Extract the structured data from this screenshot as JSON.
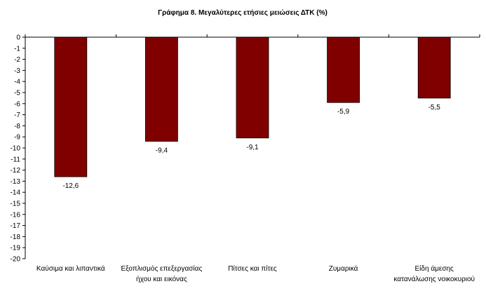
{
  "chart_data": {
    "type": "bar",
    "title": "Γράφημα 8. Μεγαλύτερες ετήσιες μειώσεις ΔΤΚ (%)",
    "categories": [
      [
        "Καύσιμα και λιπαντικά"
      ],
      [
        "Εξοπλισμός επεξεργασίας",
        "ήχου και εικόνας"
      ],
      [
        "Πίτσες και πίτες"
      ],
      [
        "Ζυμαρικά"
      ],
      [
        "Είδη άμεσης",
        "κατανάλωσης νοικοκυριού"
      ]
    ],
    "values": [
      -12.6,
      -9.4,
      -9.1,
      -5.9,
      -5.5
    ],
    "value_labels": [
      "-12,6",
      "-9,4",
      "-9,1",
      "-5,9",
      "-5,5"
    ],
    "ylim": [
      -20,
      0
    ],
    "yticks": [
      "0",
      "-1",
      "-2",
      "-3",
      "-4",
      "-5",
      "-6",
      "-7",
      "-8",
      "-9",
      "-10",
      "-11",
      "-12",
      "-13",
      "-14",
      "-15",
      "-16",
      "-17",
      "-18",
      "-19",
      "-20"
    ],
    "grid": false,
    "legend": "none",
    "colors": {
      "bar": "#800000",
      "bar_edge": "#000000",
      "axis": "#000000"
    }
  }
}
